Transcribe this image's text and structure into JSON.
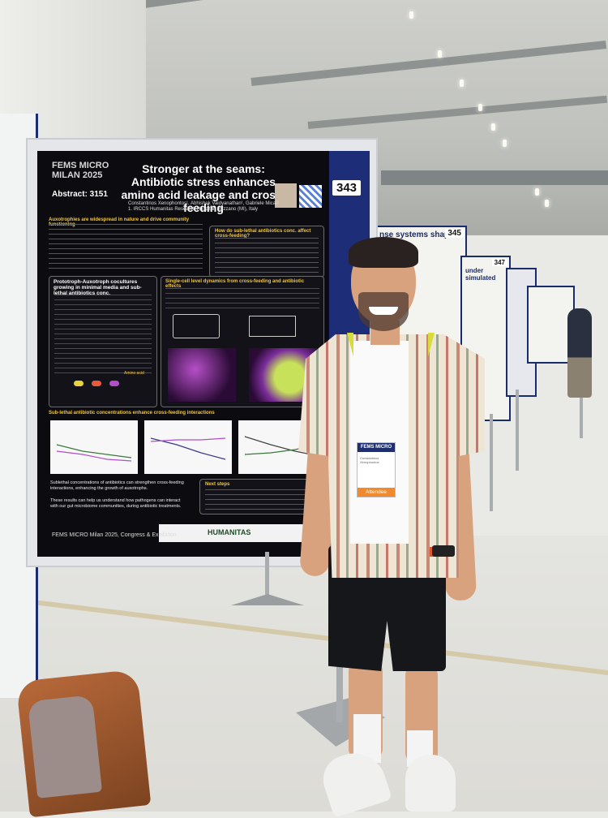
{
  "poster": {
    "logo_line1": "FEMS MICRO",
    "logo_line2": "MILAN 2025",
    "abstract": "Abstract: 3151",
    "number": "343",
    "title_line1": "Stronger at the seams:",
    "title_line2": "Antibiotic stress enhances",
    "title_line3": "amino acid leakage and cross-feeding",
    "authors": "Constantinos Xenophontos¹, Abhishek Vaidyanathan¹, Gabriele Micali¹",
    "affiliation": "1. IRCCS Humanitas Research Hospital, Rozzano (MI), Italy",
    "section1": "Auxotrophies are widespread in nature and drive community functioning",
    "section2": "How do sub-lethal antibiotics conc. affect cross-feeding?",
    "section3": "Prototroph-Auxotroph cocultures growing in minimal media and sub-lethal antibiotics conc.",
    "section4": "Single-cell level dynamics from cross-feeding and antibiotic effects",
    "section5": "Sub-lethal antibiotic concentrations enhance cross-feeding interactions",
    "conclusion1": "Sublethal concentrations of antibiotics can strengthen cross-feeding interactions, enhancing the growth of auxotrophs.",
    "conclusion2": "These results can help us understand how pathogens can interact with our gut microbiome communities, during antibiotic treatments.",
    "next_steps": "Next steps",
    "amino_acid_label": "Amino acid",
    "footer": "FEMS MICRO Milan 2025, Congress & Exhibition",
    "sponsor": "HUMANITAS"
  },
  "far_posters": [
    {
      "number": "345",
      "title": "nse systems shape the"
    },
    {
      "number": "347",
      "title": "under simulated"
    }
  ],
  "badge": {
    "header": "FEMS MICRO",
    "name": "Constantinos Xenophontos",
    "role": "Attendee",
    "lanyard": "FEMS MICRO"
  },
  "colors": {
    "poster_background": "#0c0c10",
    "poster_accent_blue": "#1d2d78",
    "section_heading": "#f3c53b",
    "lanyard": "#d8dc3a"
  }
}
